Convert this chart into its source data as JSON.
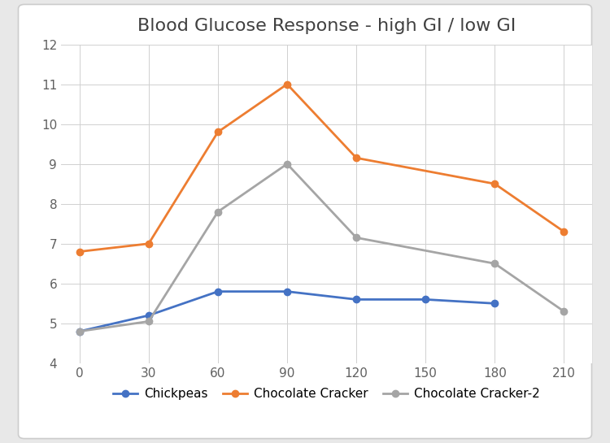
{
  "title": "Blood Glucose Response - high GI / low GI",
  "x": [
    0,
    30,
    60,
    90,
    120,
    150,
    180,
    210
  ],
  "chickpeas": [
    4.8,
    5.2,
    5.8,
    5.8,
    5.6,
    5.6,
    5.5,
    null
  ],
  "choc_cracker": [
    6.8,
    7.0,
    9.8,
    11.0,
    9.15,
    null,
    8.5,
    7.3
  ],
  "choc_cracker2": [
    4.8,
    5.05,
    7.8,
    9.0,
    7.15,
    null,
    6.5,
    5.3
  ],
  "chickpeas_color": "#4472C4",
  "choc_cracker_color": "#ED7D31",
  "choc_cracker2_color": "#A5A5A5",
  "outer_bg_color": "#E8E8E8",
  "card_bg_color": "#FFFFFF",
  "plot_bg_color": "#FFFFFF",
  "grid_color": "#D0D0D0",
  "spine_color": "#C0C0C0",
  "title_color": "#404040",
  "tick_color": "#606060",
  "ylim": [
    4,
    12
  ],
  "yticks": [
    4,
    5,
    6,
    7,
    8,
    9,
    10,
    11,
    12
  ],
  "xticks": [
    0,
    30,
    60,
    90,
    120,
    150,
    180,
    210
  ],
  "legend_labels": [
    "Chickpeas",
    "Chocolate Cracker",
    "Chocolate Cracker-2"
  ],
  "title_fontsize": 16,
  "tick_fontsize": 11,
  "legend_fontsize": 11,
  "line_width": 2.0,
  "marker_size": 6
}
